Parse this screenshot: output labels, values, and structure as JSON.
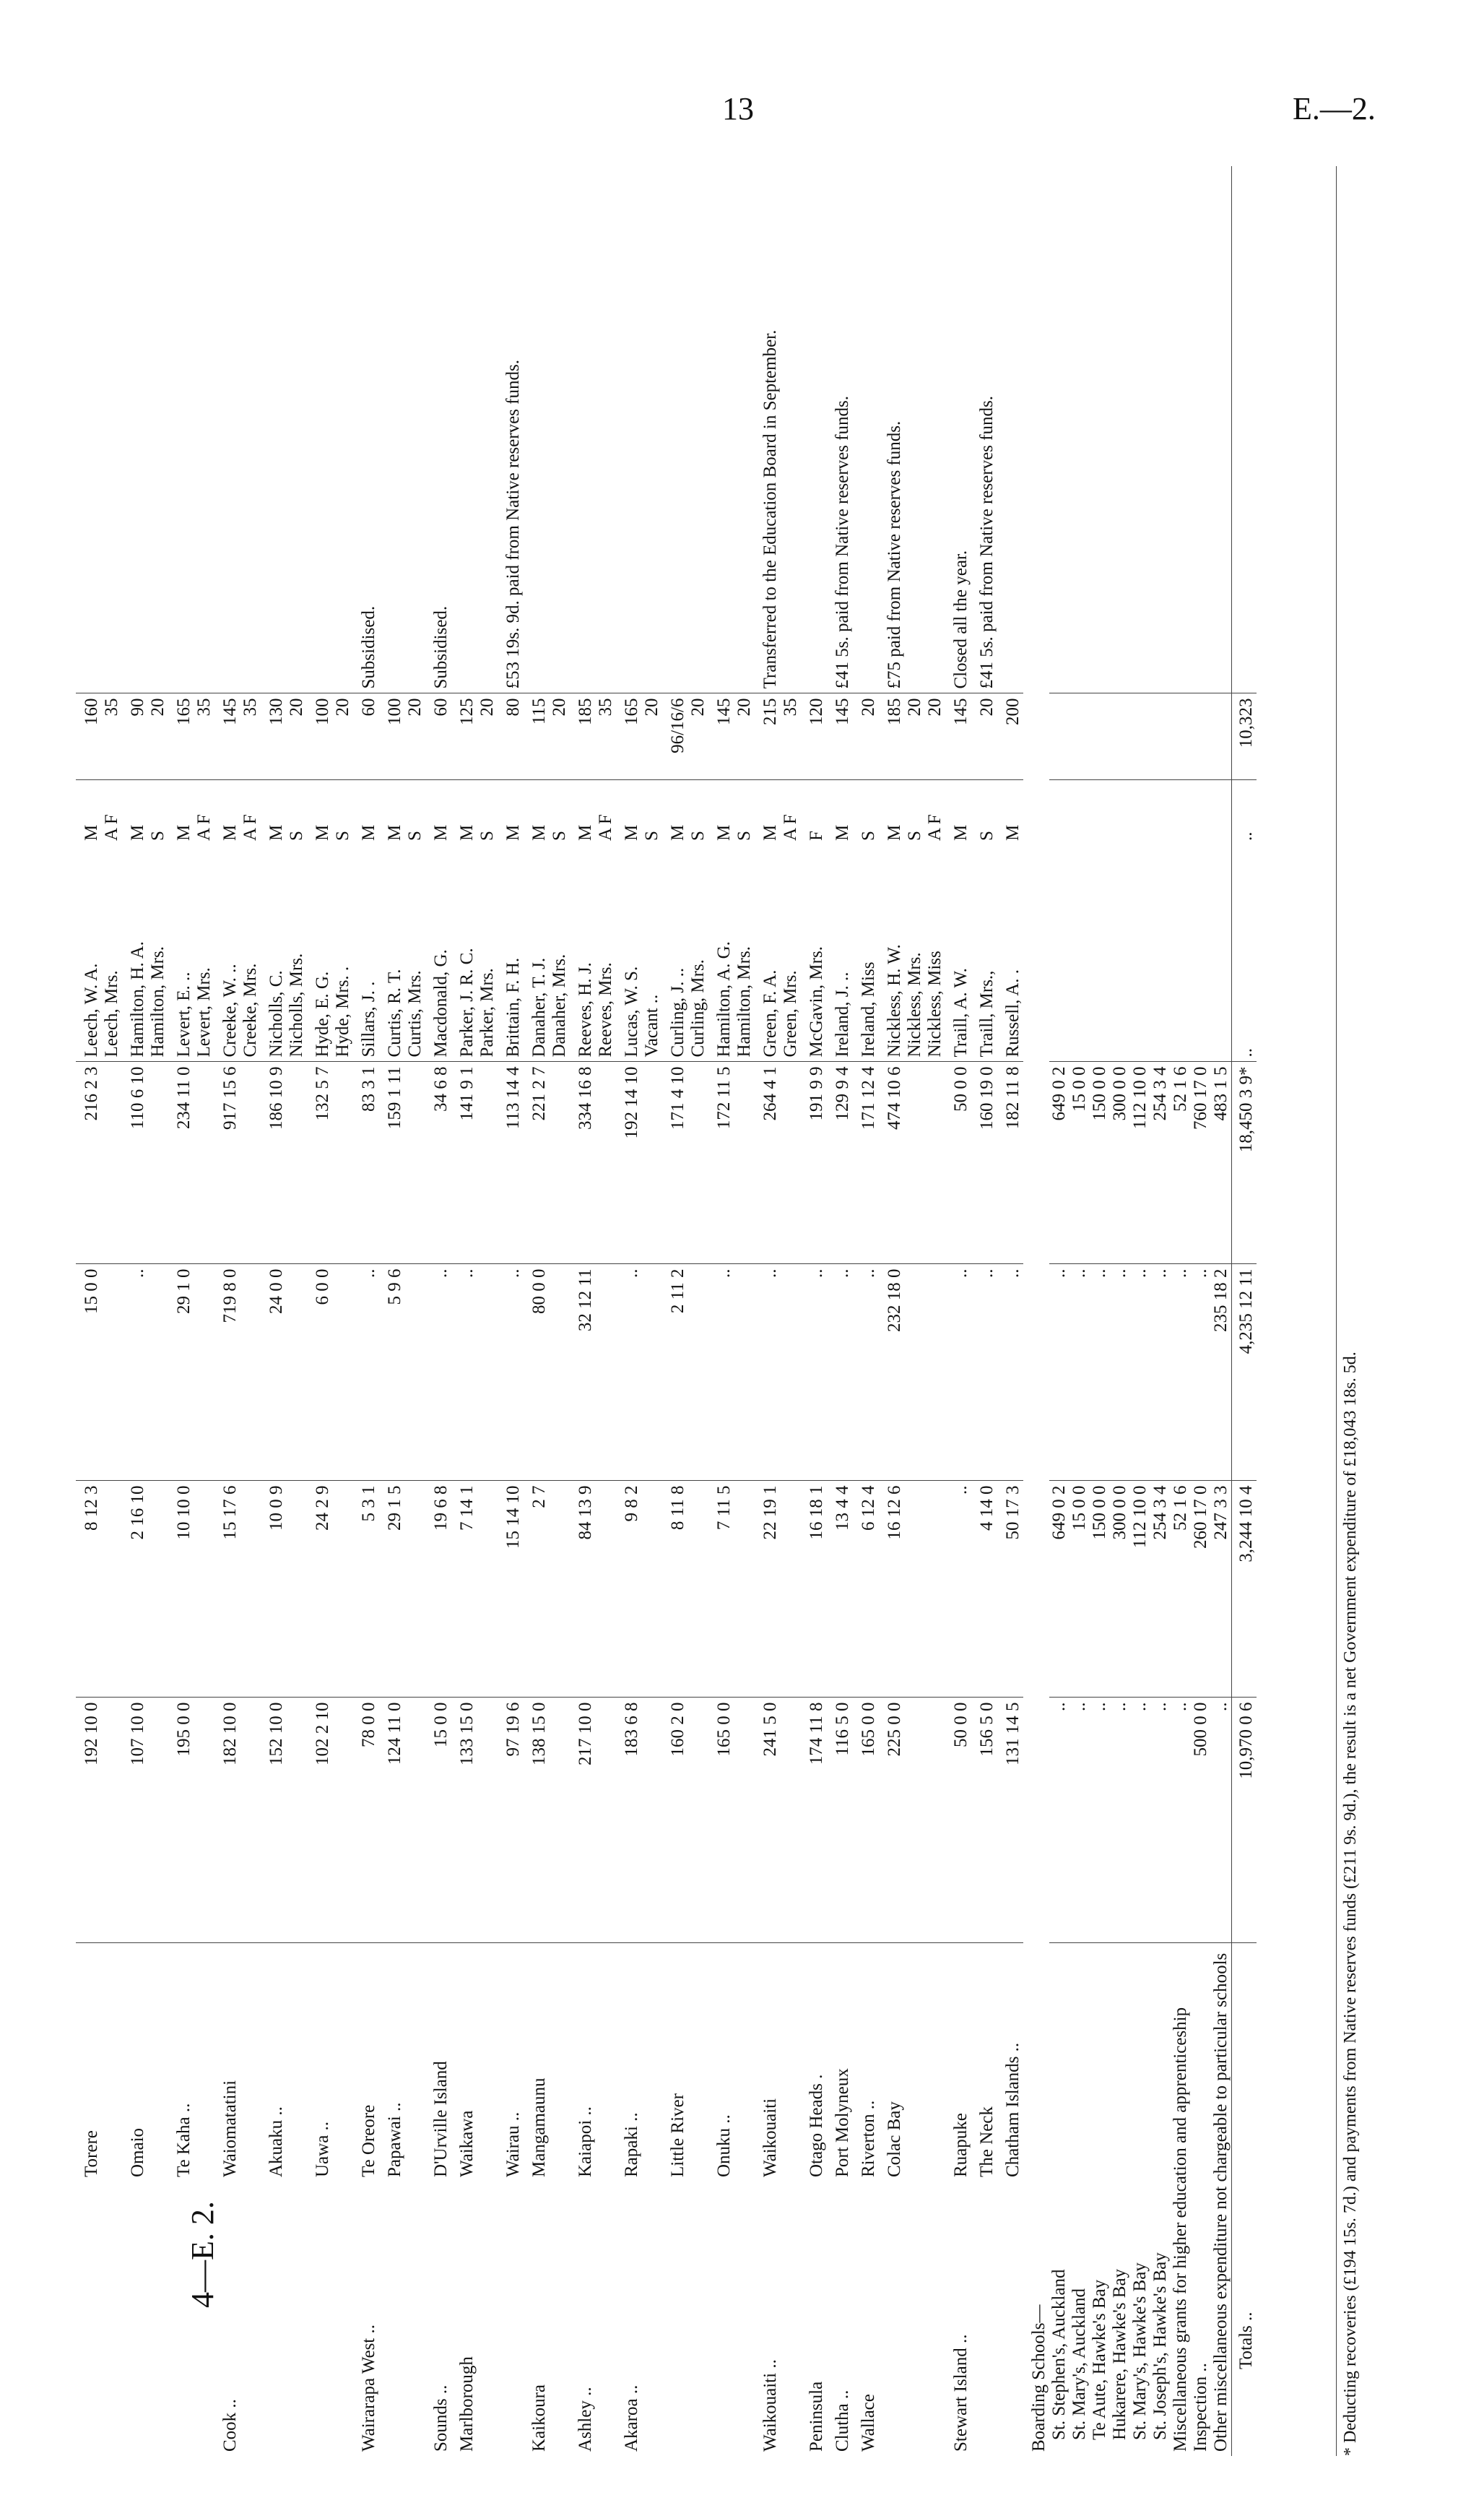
{
  "header": {
    "page_number": "13",
    "code": "E.—2.",
    "footer_code": "4—E. 2."
  },
  "rows": [
    {
      "district": "",
      "school": "Torere",
      "a": "192 10 0",
      "b": "8 12 3",
      "c": "15 0 0",
      "total": "216 2 3",
      "teachers": [
        "Leech, W. A.",
        "Leech, Mrs."
      ],
      "status": [
        "M",
        "A F"
      ],
      "salary": [
        "160",
        "35"
      ],
      "remarks": ""
    },
    {
      "district": "",
      "school": "Omaio",
      "a": "107 10 0",
      "b": "2 16 10",
      "c": "..",
      "total": "110 6 10",
      "teachers": [
        "Hamilton, H. A.",
        "Hamilton, Mrs."
      ],
      "status": [
        "M",
        "S"
      ],
      "salary": [
        "90",
        "20"
      ],
      "remarks": ""
    },
    {
      "district": "",
      "school": "Te Kaha ..",
      "a": "195 0 0",
      "b": "10 10 0",
      "c": "29 1 0",
      "total": "234 11 0",
      "teachers": [
        "Levert, E. ..",
        "Levert, Mrs."
      ],
      "status": [
        "M",
        "A F"
      ],
      "salary": [
        "165",
        "35"
      ],
      "remarks": ""
    },
    {
      "district": "Cook ..",
      "school": "Waiomatatini",
      "a": "182 10 0",
      "b": "15 17 6",
      "c": "719 8 0",
      "total": "917 15 6",
      "teachers": [
        "Creeke, W. ..",
        "Creeke, Mrs."
      ],
      "status": [
        "M",
        "A F"
      ],
      "salary": [
        "145",
        "35"
      ],
      "remarks": ""
    },
    {
      "district": "",
      "school": "Akuaku ..",
      "a": "152 10 0",
      "b": "10 0 9",
      "c": "24 0 0",
      "total": "186 10 9",
      "teachers": [
        "Nicholls, C.",
        "Nicholls, Mrs."
      ],
      "status": [
        "M",
        "S"
      ],
      "salary": [
        "130",
        "20"
      ],
      "remarks": ""
    },
    {
      "district": "",
      "school": "Uawa ..",
      "a": "102 2 10",
      "b": "24 2 9",
      "c": "6 0 0",
      "total": "132 5 7",
      "teachers": [
        "Hyde, E. G.",
        "Hyde, Mrs. ."
      ],
      "status": [
        "M",
        "S"
      ],
      "salary": [
        "100",
        "20"
      ],
      "remarks": ""
    },
    {
      "district": "Wairarapa West ..",
      "school": "Te Oreore",
      "a": "78 0 0",
      "b": "5 3 1",
      "c": "..",
      "total": "83 3 1",
      "teachers": [
        "Sillars, J. ."
      ],
      "status": [
        "M"
      ],
      "salary": [
        "60"
      ],
      "remarks": "Subsidised."
    },
    {
      "district": "",
      "school": "Papawai ..",
      "a": "124 11 0",
      "b": "29 1 5",
      "c": "5 9 6",
      "total": "159 1 11",
      "teachers": [
        "Curtis, R. T.",
        "Curtis, Mrs."
      ],
      "status": [
        "M",
        "S"
      ],
      "salary": [
        "100",
        "20"
      ],
      "remarks": ""
    },
    {
      "district": "Sounds ..",
      "school": "D'Urville Island",
      "a": "15 0 0",
      "b": "19 6 8",
      "c": "..",
      "total": "34 6 8",
      "teachers": [
        "Macdonald, G."
      ],
      "status": [
        "M"
      ],
      "salary": [
        "60"
      ],
      "remarks": "Subsidised."
    },
    {
      "district": "Marlborough",
      "school": "Waikawa",
      "a": "133 15 0",
      "b": "7 14 1",
      "c": "..",
      "total": "141 9 1",
      "teachers": [
        "Parker, J. R. C.",
        "Parker, Mrs."
      ],
      "status": [
        "M",
        "S"
      ],
      "salary": [
        "125",
        "20"
      ],
      "remarks": ""
    },
    {
      "district": "",
      "school": "Wairau ..",
      "a": "97 19 6",
      "b": "15 14 10",
      "c": "..",
      "total": "113 14 4",
      "teachers": [
        "Brittain, F. H."
      ],
      "status": [
        "M"
      ],
      "salary": [
        "80"
      ],
      "remarks": "£53 19s. 9d. paid from Native reserves funds."
    },
    {
      "district": "Kaikoura",
      "school": "Mangamaunu",
      "a": "138 15 0",
      "b": "2 7",
      "c": "80 0 0",
      "total": "221 2 7",
      "teachers": [
        "Danaher, T. J.",
        "Danaher, Mrs."
      ],
      "status": [
        "M",
        "S"
      ],
      "salary": [
        "115",
        "20"
      ],
      "remarks": ""
    },
    {
      "district": "Ashley ..",
      "school": "Kaiapoi ..",
      "a": "217 10 0",
      "b": "84 13 9",
      "c": "32 12 11",
      "total": "334 16 8",
      "teachers": [
        "Reeves, H. J.",
        "Reeves, Mrs."
      ],
      "status": [
        "M",
        "A F"
      ],
      "salary": [
        "185",
        "35"
      ],
      "remarks": ""
    },
    {
      "district": "Akaroa ..",
      "school": "Rapaki ..",
      "a": "183 6 8",
      "b": "9 8 2",
      "c": "..",
      "total": "192 14 10",
      "teachers": [
        "Lucas, W. S.",
        "Vacant .."
      ],
      "status": [
        "M",
        "S"
      ],
      "salary": [
        "165",
        "20"
      ],
      "remarks": ""
    },
    {
      "district": "",
      "school": "Little River",
      "a": "160 2 0",
      "b": "8 11 8",
      "c": "2 11 2",
      "total": "171 4 10",
      "teachers": [
        "Curling, J. ..",
        "Curling, Mrs."
      ],
      "status": [
        "M",
        "S"
      ],
      "salary": [
        "96/16/6",
        "20"
      ],
      "remarks": ""
    },
    {
      "district": "",
      "school": "Onuku ..",
      "a": "165 0 0",
      "b": "7 11 5",
      "c": "..",
      "total": "172 11 5",
      "teachers": [
        "Hamilton, A. G.",
        "Hamilton, Mrs."
      ],
      "status": [
        "M",
        "S"
      ],
      "salary": [
        "145",
        "20"
      ],
      "remarks": ""
    },
    {
      "district": "Waikouaiti ..",
      "school": "Waikouaiti",
      "a": "241 5 0",
      "b": "22 19 1",
      "c": "..",
      "total": "264 4 1",
      "teachers": [
        "Green, F. A.",
        "Green, Mrs."
      ],
      "status": [
        "M",
        "A F"
      ],
      "salary": [
        "215",
        "35"
      ],
      "remarks": "Transferred to the Education Board in September."
    },
    {
      "district": "Peninsula",
      "school": "Otago Heads .",
      "a": "174 11 8",
      "b": "16 18 1",
      "c": "..",
      "total": "191 9 9",
      "teachers": [
        "McGavin, Mrs."
      ],
      "status": [
        "F"
      ],
      "salary": [
        "120"
      ],
      "remarks": ""
    },
    {
      "district": "Clutha ..",
      "school": "Port Molyneux",
      "a": "116 5 0",
      "b": "13 4 4",
      "c": "..",
      "total": "129 9 4",
      "teachers": [
        "Ireland, J. .."
      ],
      "status": [
        "M"
      ],
      "salary": [
        "145"
      ],
      "remarks": "£41 5s. paid from Native reserves funds."
    },
    {
      "district": "Wallace",
      "school": "Riverton ..",
      "a": "165 0 0",
      "b": "6 12 4",
      "c": "..",
      "total": "171 12 4",
      "teachers": [
        "Ireland, Miss"
      ],
      "status": [
        "S"
      ],
      "salary": [
        "20"
      ],
      "remarks": ""
    },
    {
      "district": "",
      "school": "Colac Bay",
      "a": "225 0 0",
      "b": "16 12 6",
      "c": "232 18 0",
      "total": "474 10 6",
      "teachers": [
        "Nickless, H. W.",
        "Nickless, Mrs.",
        "Nickless, Miss"
      ],
      "status": [
        "M",
        "S",
        "A F"
      ],
      "salary": [
        "185",
        "20",
        "20"
      ],
      "remarks": "£75 paid from Native reserves funds."
    },
    {
      "district": "Stewart Island ..",
      "school": "Ruapuke",
      "a": "50 0 0",
      "b": "..",
      "c": "..",
      "total": "50 0 0",
      "teachers": [
        "Traill, A. W."
      ],
      "status": [
        "M"
      ],
      "salary": [
        "145"
      ],
      "remarks": "Closed all the year."
    },
    {
      "district": "",
      "school": "The Neck",
      "a": "156 5 0",
      "b": "4 14 0",
      "c": "..",
      "total": "160 19 0",
      "teachers": [
        "Traill, Mrs.,"
      ],
      "status": [
        "S"
      ],
      "salary": [
        "20"
      ],
      "remarks": "£41 5s. paid from Native reserves funds."
    },
    {
      "district": "",
      "school": "Chatham Islands ..",
      "a": "131 14 5",
      "b": "50 17 3",
      "c": "..",
      "total": "182 11 8",
      "teachers": [
        "Russell, A. ."
      ],
      "status": [
        "M"
      ],
      "salary": [
        "200"
      ],
      "remarks": ""
    }
  ],
  "boarding": {
    "heading": "Boarding Schools—",
    "rows": [
      {
        "name": "St. Stephen's, Auckland",
        "a": "..",
        "b": "649 0 2",
        "c": "..",
        "total": "649 0 2"
      },
      {
        "name": "St. Mary's, Auckland",
        "a": "..",
        "b": "15 0 0",
        "c": "..",
        "total": "15 0 0"
      },
      {
        "name": "Te Aute, Hawke's Bay",
        "a": "..",
        "b": "150 0 0",
        "c": "..",
        "total": "150 0 0"
      },
      {
        "name": "Hukarere, Hawke's Bay",
        "a": "..",
        "b": "300 0 0",
        "c": "..",
        "total": "300 0 0"
      },
      {
        "name": "St. Mary's, Hawke's Bay",
        "a": "..",
        "b": "112 10 0",
        "c": "..",
        "total": "112 10 0"
      },
      {
        "name": "St. Joseph's, Hawke's Bay",
        "a": "..",
        "b": "254 3 4",
        "c": "..",
        "total": "254 3 4"
      }
    ]
  },
  "misc": [
    {
      "name": "Miscellaneous grants for higher education and apprenticeship",
      "a": "..",
      "b": "52 1 6",
      "c": "..",
      "total": "52 1 6"
    },
    {
      "name": "Inspection ..",
      "a": "500 0 0",
      "b": "260 17 0",
      "c": "..",
      "total": "760 17 0"
    },
    {
      "name": "Other miscellaneous expenditure not chargeable to particular schools",
      "a": "..",
      "b": "247 3 3",
      "c": "235 18 2",
      "total": "483 1 5"
    }
  ],
  "totals": {
    "label": "Totals ..",
    "a": "10,970 0 6",
    "b": "3,244 10 4",
    "c": "4,235 12 11",
    "total": "18,450 3 9*",
    "teachers": "..",
    "status": "..",
    "salary": "10,323"
  },
  "footnote": "* Deducting recoveries (£194 15s. 7d.) and payments from Native reserves funds (£211 9s. 9d.), the result is a net Government expenditure of £18,043 18s. 5d."
}
